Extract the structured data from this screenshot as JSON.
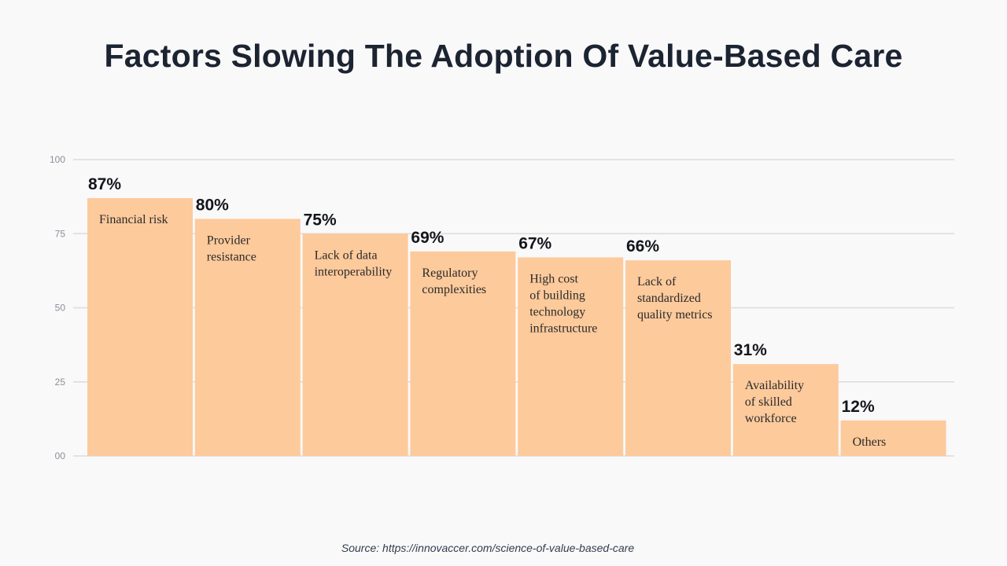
{
  "title": "Factors Slowing The Adoption Of Value-Based Care",
  "source": "Source: https://innovaccer.com/science-of-value-based-care",
  "colors": {
    "bar": "#fdca9c",
    "grid": "#dcdcdc",
    "background": "#f9f9fa"
  },
  "chart_data": {
    "type": "bar",
    "categories": [
      "Financial risk",
      "Provider resistance",
      "Lack of data interoperability",
      "Regulatory complexities",
      "High cost of building technology infrastructure",
      "Lack of standardized quality metrics",
      "Availability of skilled workforce",
      "Others"
    ],
    "category_lines": [
      [
        "Financial risk"
      ],
      [
        "Provider",
        "resistance"
      ],
      [
        "Lack of data",
        "interoperability"
      ],
      [
        "Regulatory",
        "complexities"
      ],
      [
        "High cost",
        "of building",
        "technology",
        "infrastructure"
      ],
      [
        "Lack of",
        "standardized",
        "quality metrics"
      ],
      [
        "Availability",
        "of skilled",
        "workforce"
      ],
      [
        "Others"
      ]
    ],
    "values": [
      87,
      80,
      75,
      69,
      67,
      66,
      31,
      12
    ],
    "value_labels": [
      "87%",
      "80%",
      "75%",
      "69%",
      "67%",
      "66%",
      "31%",
      "12%"
    ],
    "y_ticks": [
      0,
      25,
      50,
      75,
      100
    ],
    "y_tick_labels": [
      "00",
      "25",
      "50",
      "75",
      "100"
    ],
    "ylim": [
      0,
      100
    ],
    "grid": true,
    "legend": "none"
  }
}
